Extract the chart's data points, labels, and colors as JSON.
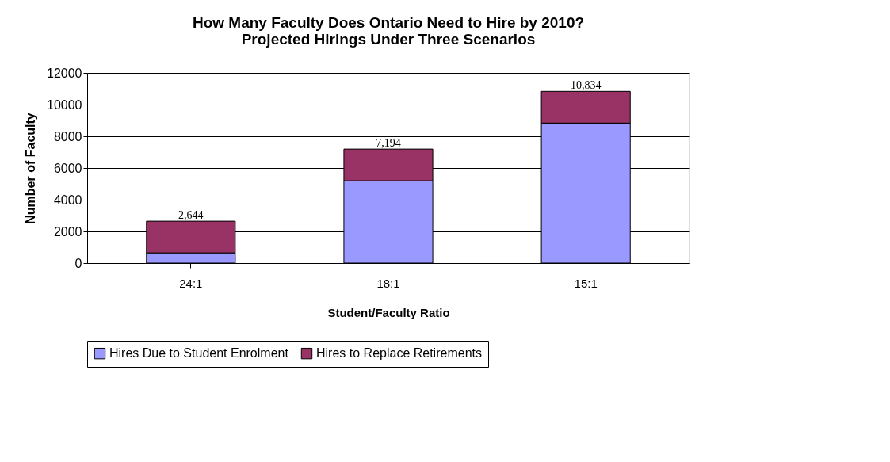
{
  "chart_data": {
    "type": "bar",
    "title": [
      "How Many Faculty Does Ontario Need to Hire by 2010?",
      "Projected Hirings Under Three Scenarios"
    ],
    "xlabel": "Student/Faculty Ratio",
    "ylabel": "Number of Faculty",
    "categories": [
      "24:1",
      "18:1",
      "15:1"
    ],
    "series": [
      {
        "name": "Hires Due to Student Enrolment",
        "color": "#9999ff",
        "values": [
          644,
          5194,
          8834
        ]
      },
      {
        "name": "Hires to Replace Retirements",
        "color": "#993366",
        "values": [
          2000,
          2000,
          2000
        ]
      }
    ],
    "stacked": true,
    "totals": [
      "2,644",
      "7,194",
      "10,834"
    ],
    "ylim": [
      0,
      12000
    ],
    "yticks": [
      0,
      2000,
      4000,
      6000,
      8000,
      10000,
      12000
    ],
    "grid": "y",
    "legend": "bottom"
  }
}
